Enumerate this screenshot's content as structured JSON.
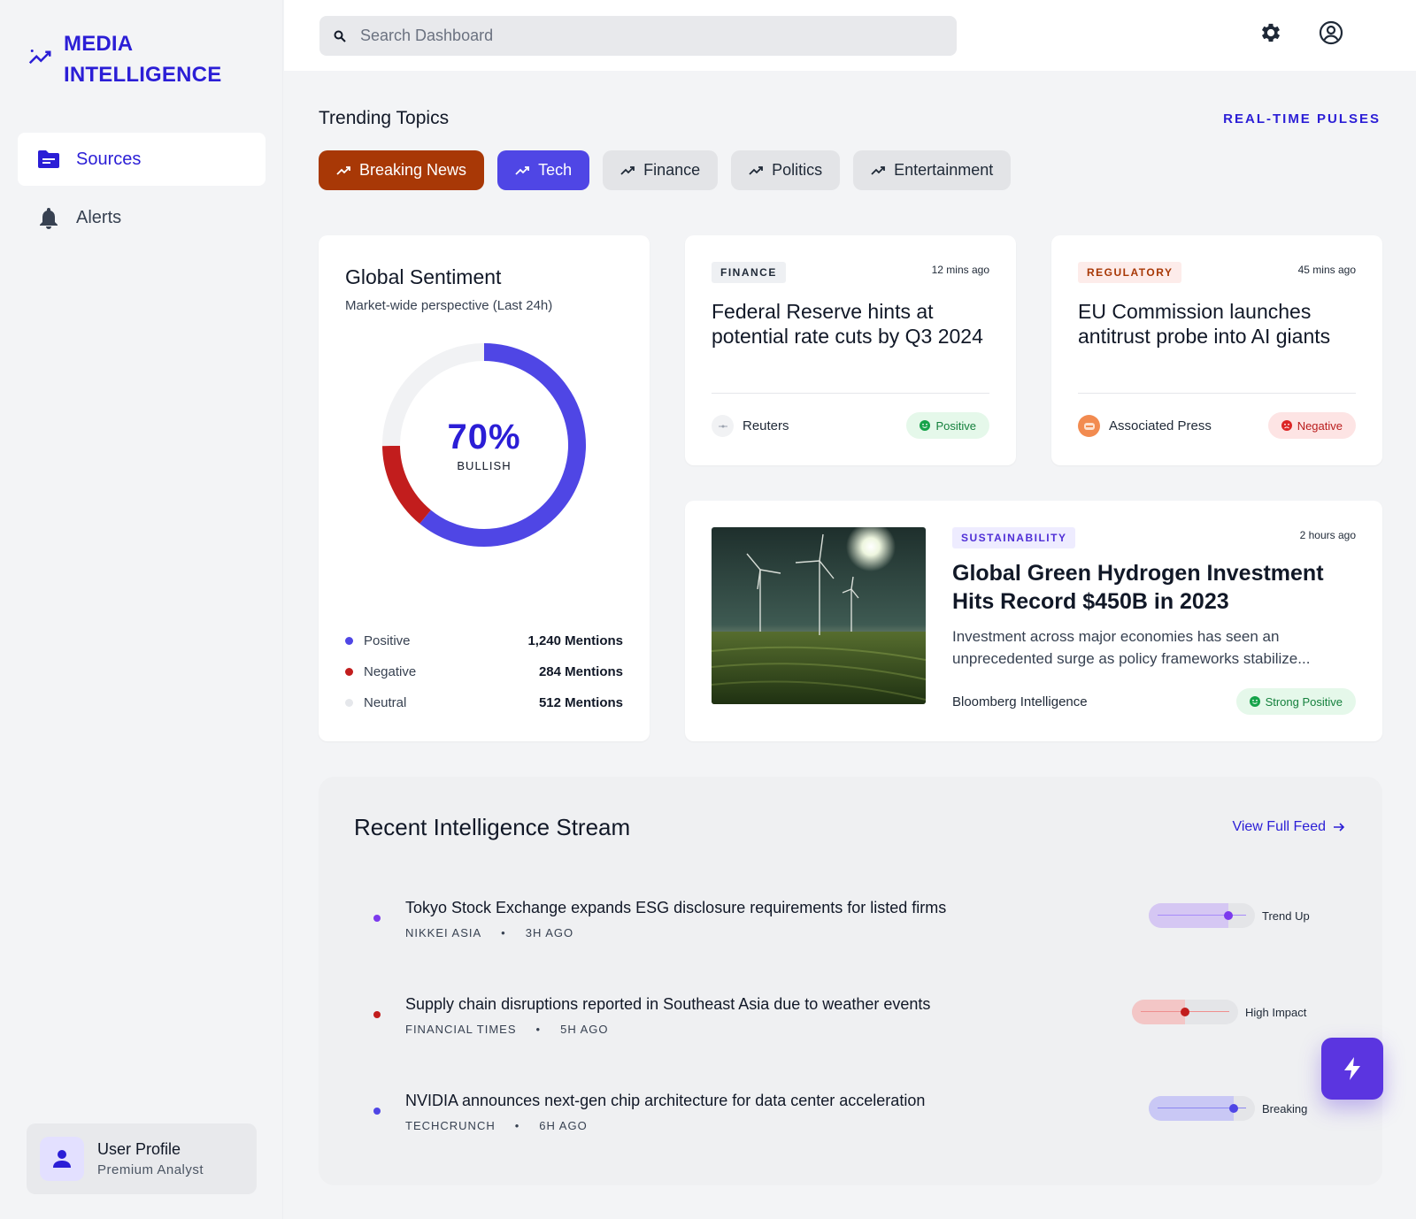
{
  "brand": {
    "line1": "MEDIA",
    "line2": "INTELLIGENCE",
    "icon": "trending-up-icon"
  },
  "sidebar": {
    "items": [
      {
        "label": "Sources",
        "icon": "folder-icon",
        "active": true
      },
      {
        "label": "Alerts",
        "icon": "bell-icon",
        "active": false
      }
    ],
    "profile": {
      "name": "User Profile",
      "role": "Premium Analyst",
      "icon": "person-icon"
    }
  },
  "header": {
    "search_placeholder": "Search Dashboard",
    "settings_icon": "gear-icon",
    "account_icon": "account-circle-icon"
  },
  "trending": {
    "title": "Trending Topics",
    "link": "REAL-TIME PULSES",
    "chips": [
      {
        "label": "Breaking News",
        "style": "breaking",
        "color": "#a83806"
      },
      {
        "label": "Tech",
        "style": "tech",
        "color": "#4f46e5"
      },
      {
        "label": "Finance",
        "style": "default"
      },
      {
        "label": "Politics",
        "style": "default"
      },
      {
        "label": "Entertainment",
        "style": "default"
      }
    ]
  },
  "sentiment": {
    "title": "Global Sentiment",
    "subtitle": "Market-wide perspective (Last 24h)",
    "value": "70%",
    "value_label": "BULLISH",
    "legend": [
      {
        "name": "Positive",
        "value": "1,240 Mentions",
        "count": 1240,
        "color": "#4f46e5"
      },
      {
        "name": "Negative",
        "value": "284 Mentions",
        "count": 284,
        "color": "#c21d1d"
      },
      {
        "name": "Neutral",
        "value": "512 Mentions",
        "count": 512,
        "color": "#e5e7eb"
      }
    ]
  },
  "news": [
    {
      "tag": "FINANCE",
      "time": "12 mins ago",
      "title": "Federal Reserve hints at potential rate cuts by Q3 2024",
      "source": "Reuters",
      "sentiment": "Positive"
    },
    {
      "tag": "REGULATORY",
      "time": "45 mins ago",
      "title": "EU Commission launches antitrust probe into AI giants",
      "source": "Associated Press",
      "sentiment": "Negative"
    }
  ],
  "feature": {
    "tag": "SUSTAINABILITY",
    "time": "2 hours ago",
    "title": "Global Green Hydrogen Investment Hits Record $450B in 2023",
    "description": "Investment across major economies has seen an unprecedented surge as policy frameworks stabilize...",
    "source": "Bloomberg Intelligence",
    "sentiment": "Strong Positive"
  },
  "stream": {
    "title": "Recent Intelligence Stream",
    "view_all": "View Full Feed",
    "items": [
      {
        "title": "Tokyo Stock Exchange expands ESG disclosure requirements for listed firms",
        "source": "NIKKEI ASIA",
        "dot": "•",
        "age": "3H AGO",
        "indicator": "Trend Up",
        "level": 0.75,
        "color": "#7c3aed"
      },
      {
        "title": "Supply chain disruptions reported in Southeast Asia due to weather events",
        "source": "FINANCIAL TIMES",
        "dot": "•",
        "age": "5H AGO",
        "indicator": "High Impact",
        "level": 0.5,
        "color": "#c21d1d"
      },
      {
        "title": "NVIDIA announces next-gen chip architecture for data center acceleration",
        "source": "TECHCRUNCH",
        "dot": "•",
        "age": "6H AGO",
        "indicator": "Breaking",
        "level": 0.8,
        "color": "#4f46e5"
      }
    ]
  },
  "fab_icon": "bolt-icon"
}
